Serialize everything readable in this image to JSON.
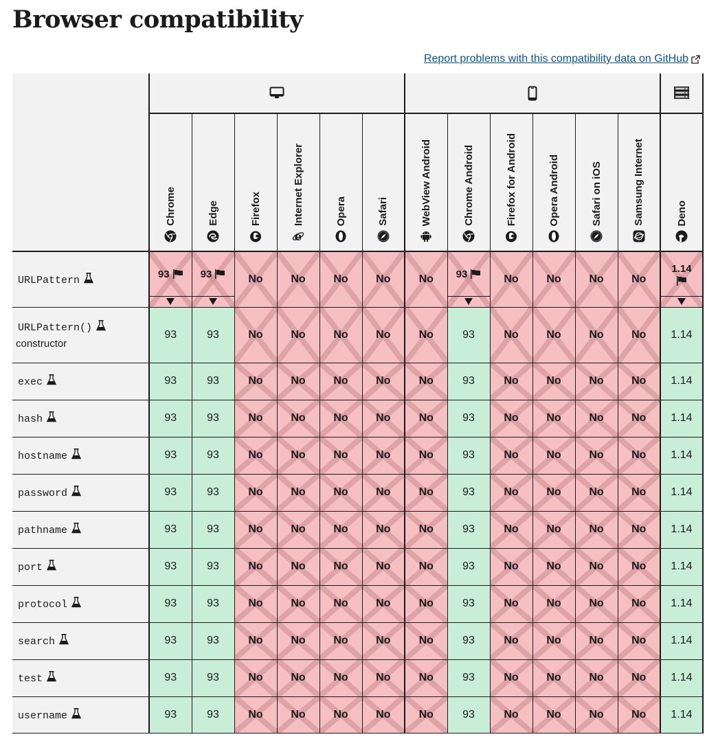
{
  "page": {
    "title": "Browser compatibility",
    "report_link": "Report problems with this compatibility data on GitHub",
    "report_link_icon": "external-link-icon"
  },
  "platforms": [
    {
      "name": "desktop",
      "icon": "desktop-icon",
      "span": 6
    },
    {
      "name": "mobile",
      "icon": "mobile-icon",
      "span": 6
    },
    {
      "name": "server",
      "icon": "server-icon",
      "span": 1
    }
  ],
  "browsers": [
    {
      "name": "Chrome",
      "icon": "chrome-icon"
    },
    {
      "name": "Edge",
      "icon": "edge-icon"
    },
    {
      "name": "Firefox",
      "icon": "firefox-icon"
    },
    {
      "name": "Internet Explorer",
      "icon": "internet-explorer-icon"
    },
    {
      "name": "Opera",
      "icon": "opera-icon"
    },
    {
      "name": "Safari",
      "icon": "safari-icon"
    },
    {
      "name": "WebView Android",
      "icon": "android-icon"
    },
    {
      "name": "Chrome Android",
      "icon": "chrome-icon"
    },
    {
      "name": "Firefox for Android",
      "icon": "firefox-icon"
    },
    {
      "name": "Opera Android",
      "icon": "opera-icon"
    },
    {
      "name": "Safari on iOS",
      "icon": "safari-icon"
    },
    {
      "name": "Samsung Internet",
      "icon": "samsung-internet-icon"
    },
    {
      "name": "Deno",
      "icon": "deno-icon"
    }
  ],
  "colors": {
    "yes_bg": "#c8eed8",
    "no_bg": "#f6bfc2",
    "header_bg": "#f2f2f2",
    "link": "#0b5590"
  },
  "features": [
    {
      "name": "URLPattern",
      "experimental": true,
      "sub": "",
      "support": [
        {
          "v": "93",
          "s": "flag"
        },
        {
          "v": "93",
          "s": "flag"
        },
        {
          "v": "No",
          "s": "no"
        },
        {
          "v": "No",
          "s": "no"
        },
        {
          "v": "No",
          "s": "no"
        },
        {
          "v": "No",
          "s": "no"
        },
        {
          "v": "No",
          "s": "no"
        },
        {
          "v": "93",
          "s": "flag"
        },
        {
          "v": "No",
          "s": "no"
        },
        {
          "v": "No",
          "s": "no"
        },
        {
          "v": "No",
          "s": "no"
        },
        {
          "v": "No",
          "s": "no"
        },
        {
          "v": "1.14",
          "s": "flag"
        }
      ]
    },
    {
      "name": "URLPattern()",
      "experimental": true,
      "sub": "constructor",
      "support": [
        {
          "v": "93",
          "s": "yes"
        },
        {
          "v": "93",
          "s": "yes"
        },
        {
          "v": "No",
          "s": "no"
        },
        {
          "v": "No",
          "s": "no"
        },
        {
          "v": "No",
          "s": "no"
        },
        {
          "v": "No",
          "s": "no"
        },
        {
          "v": "No",
          "s": "no"
        },
        {
          "v": "93",
          "s": "yes"
        },
        {
          "v": "No",
          "s": "no"
        },
        {
          "v": "No",
          "s": "no"
        },
        {
          "v": "No",
          "s": "no"
        },
        {
          "v": "No",
          "s": "no"
        },
        {
          "v": "1.14",
          "s": "yes"
        }
      ]
    },
    {
      "name": "exec",
      "experimental": true,
      "sub": "",
      "support": "std"
    },
    {
      "name": "hash",
      "experimental": true,
      "sub": "",
      "support": "std"
    },
    {
      "name": "hostname",
      "experimental": true,
      "sub": "",
      "support": "std"
    },
    {
      "name": "password",
      "experimental": true,
      "sub": "",
      "support": "std"
    },
    {
      "name": "pathname",
      "experimental": true,
      "sub": "",
      "support": "std"
    },
    {
      "name": "port",
      "experimental": true,
      "sub": "",
      "support": "std"
    },
    {
      "name": "protocol",
      "experimental": true,
      "sub": "",
      "support": "std"
    },
    {
      "name": "search",
      "experimental": true,
      "sub": "",
      "support": "std"
    },
    {
      "name": "test",
      "experimental": true,
      "sub": "",
      "support": "std"
    },
    {
      "name": "username",
      "experimental": true,
      "sub": "",
      "support": "std"
    }
  ],
  "std_support": [
    {
      "v": "93",
      "s": "yes"
    },
    {
      "v": "93",
      "s": "yes"
    },
    {
      "v": "No",
      "s": "no"
    },
    {
      "v": "No",
      "s": "no"
    },
    {
      "v": "No",
      "s": "no"
    },
    {
      "v": "No",
      "s": "no"
    },
    {
      "v": "No",
      "s": "no"
    },
    {
      "v": "93",
      "s": "yes"
    },
    {
      "v": "No",
      "s": "no"
    },
    {
      "v": "No",
      "s": "no"
    },
    {
      "v": "No",
      "s": "no"
    },
    {
      "v": "No",
      "s": "no"
    },
    {
      "v": "1.14",
      "s": "yes"
    }
  ]
}
